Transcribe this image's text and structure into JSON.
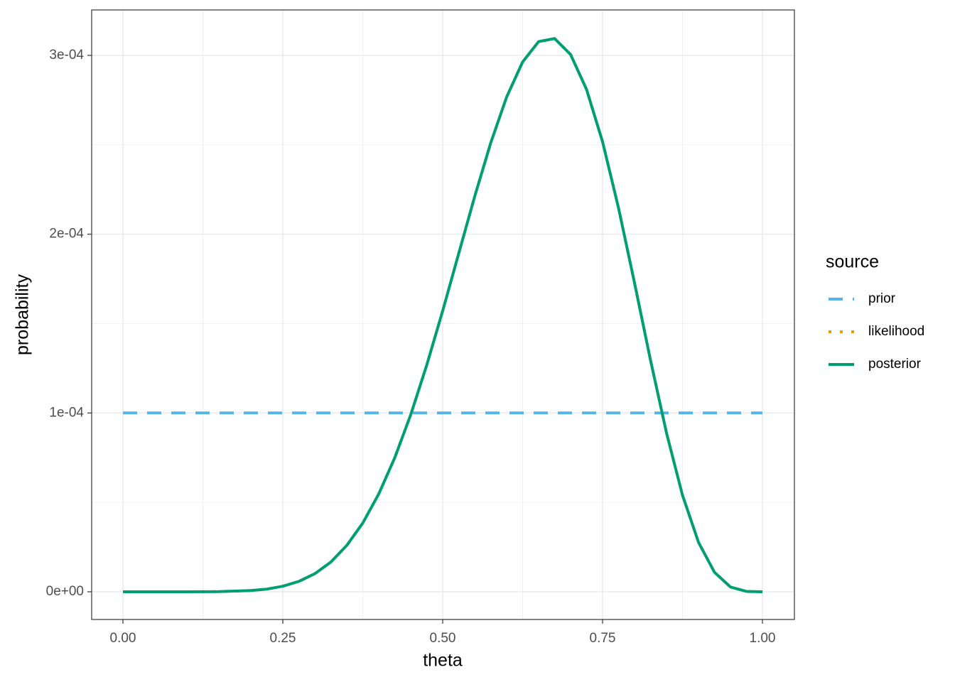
{
  "chart_data": {
    "type": "line",
    "xlabel": "theta",
    "ylabel": "probability",
    "x": [
      0,
      0.05,
      0.1,
      0.15,
      0.2,
      0.225,
      0.25,
      0.275,
      0.3,
      0.325,
      0.35,
      0.375,
      0.4,
      0.425,
      0.45,
      0.475,
      0.5,
      0.525,
      0.55,
      0.575,
      0.6,
      0.625,
      0.65,
      0.675,
      0.7,
      0.725,
      0.75,
      0.775,
      0.8,
      0.825,
      0.85,
      0.875,
      0.9,
      0.925,
      0.95,
      0.975,
      1
    ],
    "series": [
      {
        "name": "prior",
        "color": "#56B4E9",
        "dash": "dashed",
        "values": [
          0.0001,
          0.0001,
          0.0001,
          0.0001,
          0.0001,
          0.0001,
          0.0001,
          0.0001,
          0.0001,
          0.0001,
          0.0001,
          0.0001,
          0.0001,
          0.0001,
          0.0001,
          0.0001,
          0.0001,
          0.0001,
          0.0001,
          0.0001,
          0.0001,
          0.0001,
          0.0001,
          0.0001,
          0.0001,
          0.0001,
          0.0001,
          0.0001,
          0.0001,
          0.0001,
          0.0001,
          0.0001,
          0.0001,
          0.0001,
          0.0001,
          0.0001,
          0.0001
        ]
      },
      {
        "name": "likelihood",
        "color": "#E69F00",
        "dash": "dotted",
        "values": [
          0,
          0,
          4.2e-09,
          8.6e-08,
          6.7e-07,
          1.5e-06,
          3.1e-06,
          5.8e-06,
          1.01e-05,
          1.66e-05,
          2.59e-05,
          3.84e-05,
          5.47e-05,
          7.49e-05,
          9.9e-05,
          0.0001267,
          0.0001571,
          0.0001891,
          0.000221,
          0.0002509,
          0.0002767,
          0.0002963,
          0.0003077,
          0.0003094,
          0.0003005,
          0.0002809,
          0.0002517,
          0.0002146,
          0.0001727,
          0.0001295,
          8.88e-05,
          5.4e-05,
          2.77e-05,
          1.09e-05,
          2.67e-06,
          2.1e-07,
          0
        ]
      },
      {
        "name": "posterior",
        "color": "#009E73",
        "dash": "solid",
        "values": [
          0,
          0,
          4.2e-09,
          8.6e-08,
          6.7e-07,
          1.5e-06,
          3.1e-06,
          5.8e-06,
          1.01e-05,
          1.66e-05,
          2.59e-05,
          3.84e-05,
          5.47e-05,
          7.49e-05,
          9.9e-05,
          0.0001267,
          0.0001571,
          0.0001891,
          0.000221,
          0.0002509,
          0.0002767,
          0.0002963,
          0.0003077,
          0.0003094,
          0.0003005,
          0.0002809,
          0.0002517,
          0.0002146,
          0.0001727,
          0.0001295,
          8.88e-05,
          5.4e-05,
          2.77e-05,
          1.09e-05,
          2.67e-06,
          2.1e-07,
          0
        ]
      }
    ],
    "xlim": [
      -0.0489,
      1.05
    ],
    "xticks": [
      {
        "value": 0,
        "label": "0.00"
      },
      0.25,
      {
        "value": 0.5,
        "label": "0.50"
      },
      0.75,
      {
        "value": 1,
        "label": "1.00"
      }
    ],
    "ylim": [
      -1.55e-05,
      0.0003254
    ],
    "yticks": [
      {
        "value": 0,
        "label": "0e+00"
      },
      {
        "value": 0.0001,
        "label": "1e-04"
      },
      {
        "value": 0.0002,
        "label": "2e-04"
      },
      {
        "value": 0.0003,
        "label": "3e-04"
      }
    ],
    "grid": true,
    "legend_title": "source",
    "legend": "right"
  }
}
